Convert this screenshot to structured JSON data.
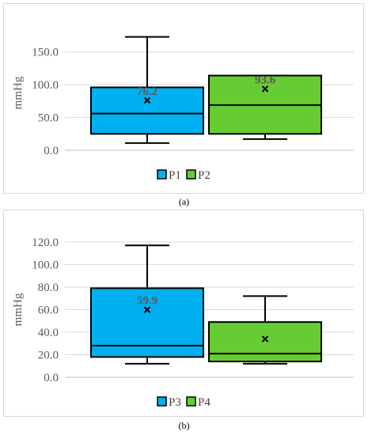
{
  "chart_data": [
    {
      "type": "box",
      "panel_label": "(a)",
      "ylabel": "mmHg",
      "ylim": [
        0,
        175
      ],
      "yticks": [
        0,
        50,
        100,
        150
      ],
      "tick_labels": [
        "0.0",
        "50.0",
        "100.0",
        "150.0"
      ],
      "grid": true,
      "legend_position": "bottom",
      "series": [
        {
          "name": "P1",
          "color": "#00b0f0",
          "min": 11,
          "q1": 25,
          "median": 56,
          "q3": 96,
          "max": 173,
          "mean": 76.2,
          "mean_label": "76.2"
        },
        {
          "name": "P2",
          "color": "#66cc33",
          "min": 17,
          "q1": 25,
          "median": 69,
          "q3": 114,
          "max": 114,
          "mean": 93.6,
          "mean_label": "93.6"
        }
      ]
    },
    {
      "type": "box",
      "panel_label": "(b)",
      "ylabel": "mmHg",
      "ylim": [
        0,
        120
      ],
      "yticks": [
        0,
        20,
        40,
        60,
        80,
        100,
        120
      ],
      "tick_labels": [
        "0.0",
        "20.0",
        "40.0",
        "60.0",
        "80.0",
        "100.0",
        "120.0"
      ],
      "grid": true,
      "legend_position": "bottom",
      "series": [
        {
          "name": "P3",
          "color": "#00b0f0",
          "min": 12,
          "q1": 18,
          "median": 28,
          "q3": 79,
          "max": 117,
          "mean": 59.9,
          "mean_label": "59.9"
        },
        {
          "name": "P4",
          "color": "#66cc33",
          "min": 12,
          "q1": 14,
          "median": 21,
          "q3": 49,
          "max": 72,
          "mean": 34,
          "mean_label": ""
        }
      ]
    }
  ]
}
